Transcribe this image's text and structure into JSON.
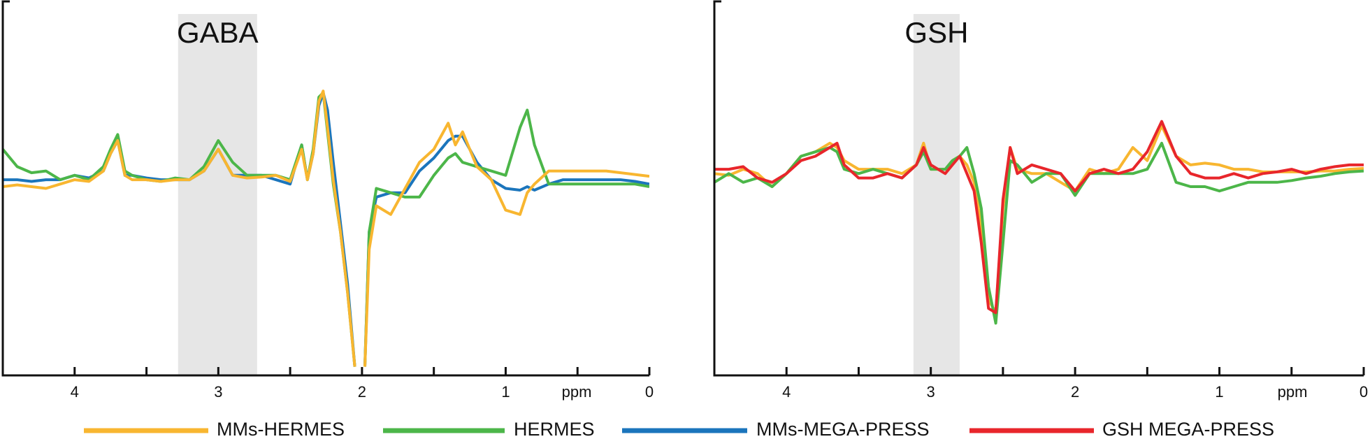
{
  "chart_data": [
    {
      "type": "line",
      "xlim": [
        4.5,
        0
      ],
      "ylim": [
        -2.25,
        2.05
      ],
      "xticks": [
        4,
        3,
        2,
        1,
        0
      ],
      "xminor": [
        3.5,
        2.5,
        1.5,
        0.5
      ],
      "xlabel": "ppm",
      "annotation": {
        "text": "GABA",
        "span": [
          3.28,
          2.73
        ]
      },
      "x": [
        4.5,
        4.4,
        4.3,
        4.2,
        4.1,
        4.0,
        3.9,
        3.8,
        3.75,
        3.7,
        3.65,
        3.6,
        3.5,
        3.4,
        3.3,
        3.2,
        3.1,
        3.0,
        2.9,
        2.8,
        2.7,
        2.6,
        2.5,
        2.42,
        2.38,
        2.34,
        2.3,
        2.27,
        2.24,
        2.2,
        2.15,
        2.1,
        2.05,
        2.02,
        1.98,
        1.95,
        1.9,
        1.8,
        1.7,
        1.6,
        1.5,
        1.4,
        1.35,
        1.3,
        1.2,
        1.1,
        1.0,
        0.9,
        0.85,
        0.8,
        0.7,
        0.6,
        0.5,
        0.4,
        0.3,
        0.2,
        0.1,
        0.0
      ],
      "series": [
        {
          "name": "MMs-HERMES",
          "color": "#F8B630",
          "values": [
            -0.08,
            -0.06,
            -0.08,
            -0.1,
            -0.05,
            0.0,
            -0.02,
            0.1,
            0.3,
            0.45,
            0.05,
            0.0,
            0.0,
            -0.02,
            0.0,
            0.0,
            0.1,
            0.35,
            0.05,
            0.02,
            0.03,
            0.05,
            -0.02,
            0.35,
            0.0,
            0.3,
            0.9,
            1.02,
            0.6,
            0.0,
            -0.6,
            -1.3,
            -2.15,
            null,
            -2.15,
            -0.8,
            -0.3,
            -0.4,
            -0.1,
            0.2,
            0.35,
            0.65,
            0.4,
            0.55,
            0.15,
            0.0,
            -0.35,
            -0.4,
            -0.15,
            -0.05,
            0.1,
            0.1,
            0.1,
            0.1,
            0.1,
            0.08,
            0.06,
            0.04
          ]
        },
        {
          "name": "HERMES",
          "color": "#4CB649",
          "values": [
            0.35,
            0.15,
            0.08,
            0.1,
            0.0,
            0.05,
            0.0,
            0.15,
            0.35,
            0.52,
            0.1,
            0.05,
            0.0,
            -0.02,
            0.02,
            0.0,
            0.15,
            0.45,
            0.2,
            0.05,
            0.05,
            0.05,
            0.0,
            0.4,
            0.0,
            0.35,
            0.95,
            1.0,
            0.55,
            -0.05,
            -0.6,
            -1.3,
            -2.15,
            null,
            -2.15,
            -0.6,
            -0.1,
            -0.15,
            -0.2,
            -0.2,
            0.05,
            0.25,
            0.3,
            0.2,
            0.15,
            0.1,
            0.05,
            0.6,
            0.8,
            0.4,
            -0.05,
            -0.05,
            -0.05,
            -0.05,
            -0.05,
            -0.05,
            -0.05,
            -0.08
          ]
        },
        {
          "name": "MMs-MEGA-PRESS",
          "color": "#1B75BC",
          "values": [
            0.0,
            0.0,
            -0.02,
            0.0,
            0.0,
            0.05,
            0.02,
            0.1,
            0.3,
            0.45,
            0.05,
            0.05,
            0.02,
            0.0,
            0.0,
            0.0,
            0.1,
            0.35,
            0.05,
            0.05,
            0.05,
            0.0,
            -0.05,
            0.4,
            0.0,
            0.3,
            0.85,
            1.0,
            0.8,
            0.2,
            -0.5,
            -1.2,
            -2.15,
            null,
            -2.15,
            -0.6,
            -0.2,
            -0.15,
            -0.15,
            0.1,
            0.25,
            0.45,
            0.5,
            0.5,
            0.2,
            0.0,
            -0.1,
            -0.12,
            -0.08,
            -0.12,
            -0.05,
            0.0,
            0.0,
            0.0,
            0.0,
            0.0,
            -0.02,
            -0.05
          ]
        }
      ]
    },
    {
      "type": "line",
      "xlim": [
        4.5,
        0
      ],
      "ylim": [
        -2.32,
        1.98
      ],
      "xticks": [
        4,
        3,
        2,
        1,
        0
      ],
      "xminor": [
        3.5,
        2.5,
        1.5,
        0.5
      ],
      "xlabel": "ppm",
      "annotation": {
        "text": "GSH",
        "span": [
          3.12,
          2.8
        ]
      },
      "x": [
        4.5,
        4.4,
        4.3,
        4.2,
        4.1,
        4.0,
        3.9,
        3.8,
        3.7,
        3.65,
        3.6,
        3.5,
        3.4,
        3.3,
        3.2,
        3.1,
        3.05,
        3.0,
        2.9,
        2.85,
        2.8,
        2.75,
        2.7,
        2.65,
        2.6,
        2.55,
        2.5,
        2.45,
        2.4,
        2.3,
        2.2,
        2.1,
        2.0,
        1.9,
        1.8,
        1.7,
        1.6,
        1.5,
        1.4,
        1.3,
        1.2,
        1.1,
        1.0,
        0.9,
        0.8,
        0.7,
        0.6,
        0.5,
        0.4,
        0.3,
        0.2,
        0.1,
        0.0
      ],
      "series": [
        {
          "name": "GSH MEGA-PRESS",
          "color": "#E8262B",
          "values": [
            0.05,
            0.05,
            0.08,
            -0.05,
            -0.1,
            0.0,
            0.15,
            0.2,
            0.3,
            0.35,
            0.1,
            -0.05,
            -0.05,
            0.0,
            -0.05,
            0.1,
            0.3,
            0.1,
            0.0,
            0.1,
            0.2,
            0.0,
            -0.2,
            -0.8,
            -1.55,
            -1.6,
            -0.3,
            0.3,
            0.0,
            0.1,
            0.05,
            0.0,
            -0.2,
            0.0,
            0.05,
            0.0,
            0.05,
            0.25,
            0.6,
            0.2,
            0.0,
            -0.05,
            -0.05,
            0.0,
            -0.05,
            0.0,
            0.02,
            0.05,
            0.0,
            0.05,
            0.08,
            0.1,
            0.1
          ]
        },
        {
          "name": "HERMES",
          "color": "#4CB649",
          "values": [
            -0.1,
            0.0,
            -0.1,
            -0.05,
            -0.15,
            0.0,
            0.2,
            0.25,
            0.3,
            0.25,
            0.05,
            0.0,
            0.05,
            0.0,
            -0.05,
            0.1,
            0.25,
            0.05,
            0.05,
            0.15,
            0.2,
            0.3,
            0.0,
            -0.4,
            -1.3,
            -1.72,
            -0.8,
            0.15,
            0.1,
            -0.1,
            0.0,
            0.0,
            -0.25,
            0.0,
            0.0,
            0.0,
            0.0,
            0.05,
            0.35,
            -0.1,
            -0.15,
            -0.15,
            -0.2,
            -0.15,
            -0.1,
            -0.1,
            -0.1,
            -0.08,
            -0.05,
            -0.03,
            0.0,
            0.02,
            0.03
          ]
        },
        {
          "name": "MMs-HERMES",
          "color": "#F8B630",
          "values": [
            0.0,
            -0.02,
            0.05,
            0.0,
            -0.15,
            0.0,
            0.2,
            0.25,
            0.35,
            0.3,
            0.15,
            0.05,
            0.05,
            0.05,
            0.0,
            0.1,
            0.35,
            0.05,
            0.05,
            0.15,
            0.2,
            0.1,
            -0.1,
            -0.6,
            -1.45,
            -1.6,
            -0.4,
            0.3,
            0.05,
            0.0,
            0.0,
            -0.1,
            -0.2,
            0.05,
            0.0,
            0.05,
            0.3,
            0.15,
            0.55,
            0.2,
            0.1,
            0.12,
            0.1,
            0.05,
            0.05,
            0.02,
            0.02,
            0.02,
            0.02,
            0.03,
            0.03,
            0.05,
            0.06
          ]
        }
      ]
    }
  ]
}
